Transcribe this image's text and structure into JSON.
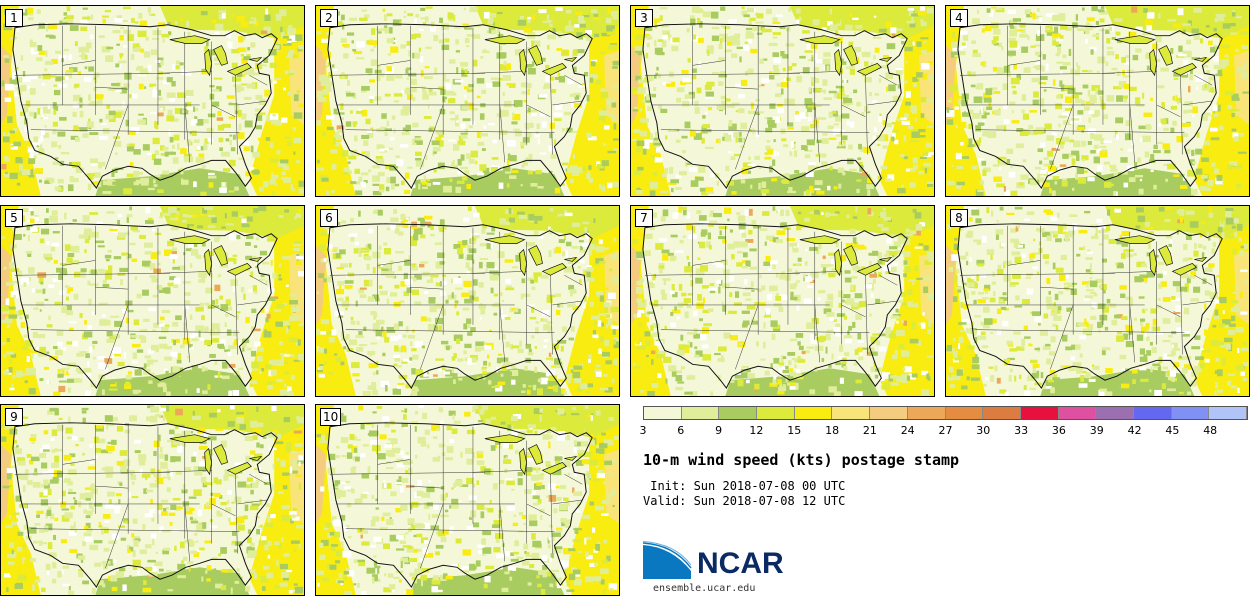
{
  "panels": [
    {
      "label": "1"
    },
    {
      "label": "2"
    },
    {
      "label": "3"
    },
    {
      "label": "4"
    },
    {
      "label": "5"
    },
    {
      "label": "6"
    },
    {
      "label": "7"
    },
    {
      "label": "8"
    },
    {
      "label": "9"
    },
    {
      "label": "10"
    }
  ],
  "legend": {
    "colors": [
      "#f4f8d8",
      "#e0ee9c",
      "#a8cc60",
      "#dcea3c",
      "#f8ec10",
      "#f8e478",
      "#f4cc80",
      "#eca858",
      "#e48c40",
      "#dc7c40",
      "#e8103c",
      "#e050a0",
      "#9c70b0",
      "#6468f0",
      "#8090f4",
      "#b0c4f8"
    ],
    "tick_labels": [
      "3",
      "6",
      "9",
      "12",
      "15",
      "18",
      "21",
      "24",
      "27",
      "30",
      "33",
      "36",
      "39",
      "42",
      "45",
      "48"
    ]
  },
  "title": "10-m wind speed (kts) postage stamp",
  "init_text": " Init: Sun 2018-07-08 00 UTC",
  "valid_text": "Valid: Sun 2018-07-08 12 UTC",
  "logo": {
    "name": "NCAR"
  },
  "url": "ensemble.ucar.edu"
}
